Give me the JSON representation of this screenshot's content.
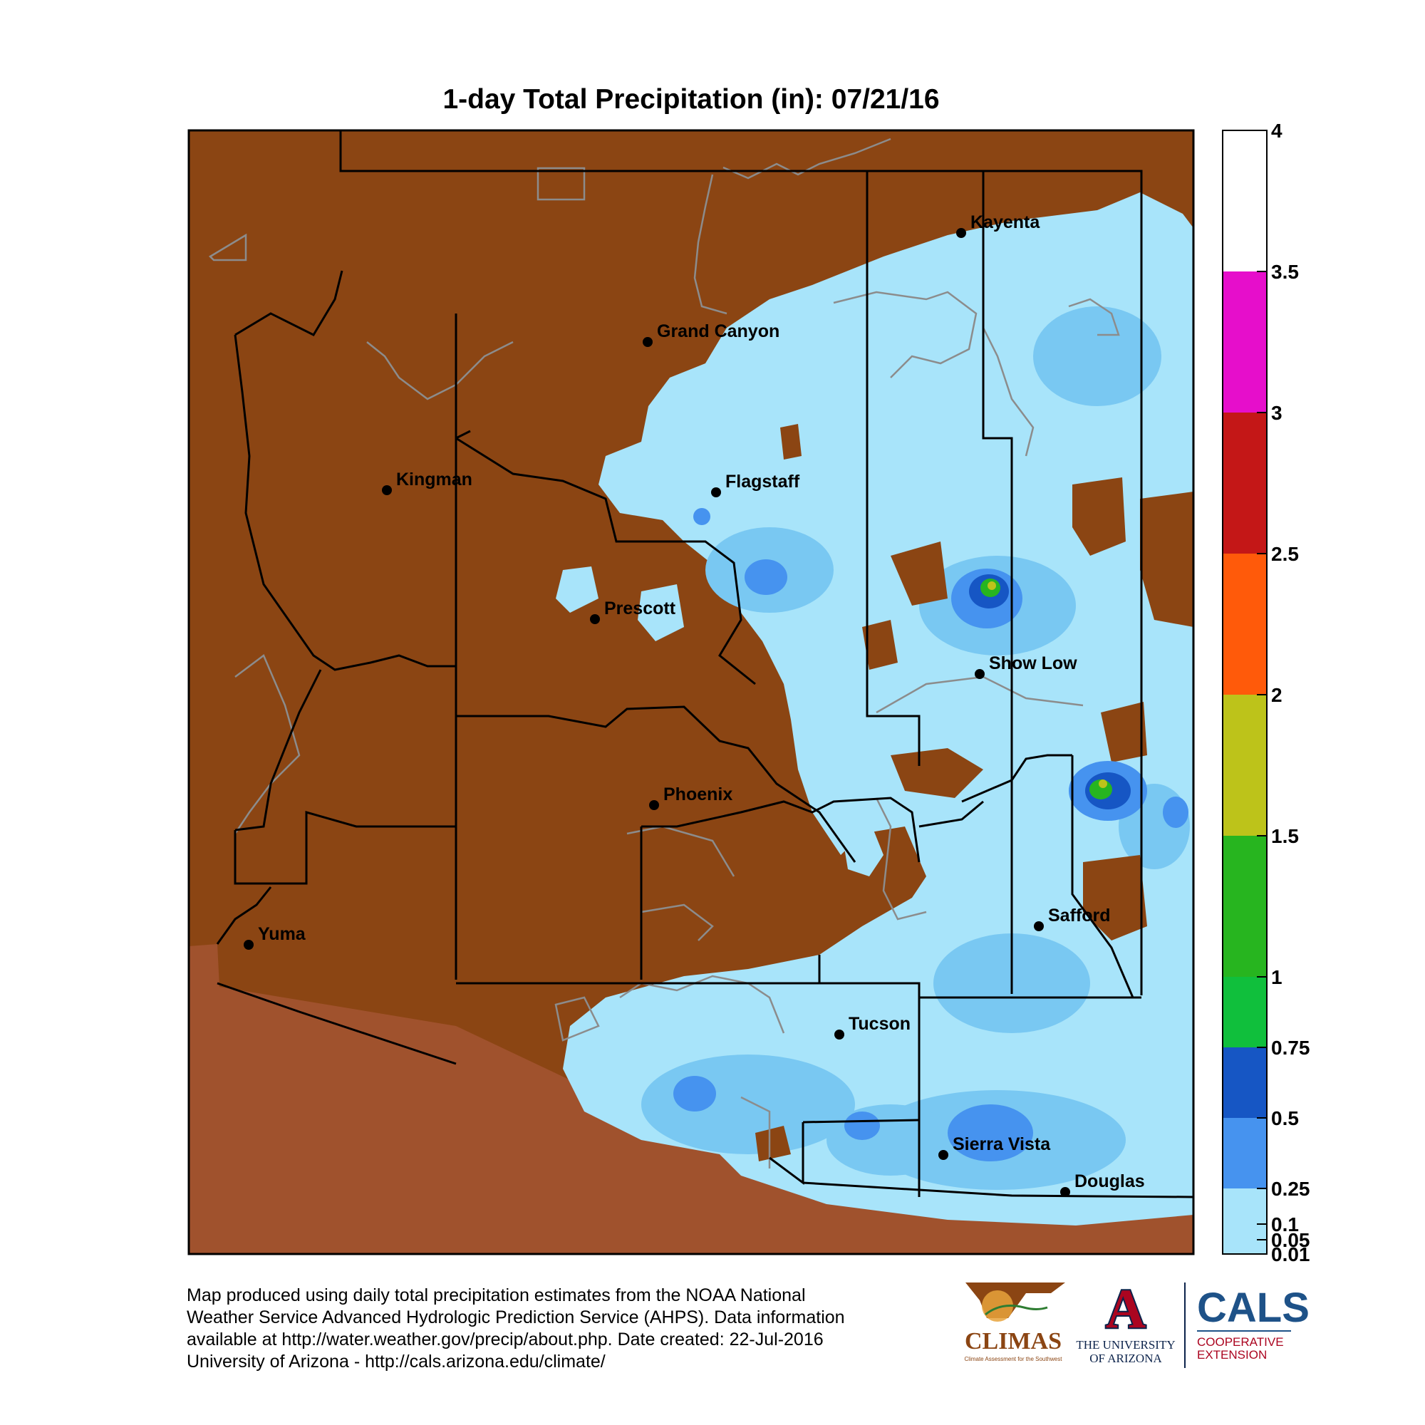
{
  "title": "1-day Total Precipitation (in): 07/21/16",
  "cities": [
    {
      "name": "Kayenta"
    },
    {
      "name": "Grand Canyon"
    },
    {
      "name": "Kingman"
    },
    {
      "name": "Flagstaff"
    },
    {
      "name": "Prescott"
    },
    {
      "name": "Show Low"
    },
    {
      "name": "Phoenix"
    },
    {
      "name": "Safford"
    },
    {
      "name": "Yuma"
    },
    {
      "name": "Tucson"
    },
    {
      "name": "Sierra Vista"
    },
    {
      "name": "Douglas"
    }
  ],
  "legend": {
    "ticks": [
      "4",
      "3.5",
      "3",
      "2.5",
      "2",
      "1.5",
      "1",
      "0.75",
      "0.5",
      "0.25",
      "0.1",
      "0.05",
      "0.01"
    ],
    "bins": [
      {
        "from": "3.5",
        "to": "4",
        "color": "#ffffff"
      },
      {
        "from": "3",
        "to": "3.5",
        "color": "#e60ecb"
      },
      {
        "from": "2.5",
        "to": "3",
        "color": "#c41717"
      },
      {
        "from": "2",
        "to": "2.5",
        "color": "#ff5a0a"
      },
      {
        "from": "1.5",
        "to": "2",
        "color": "#bdc31a"
      },
      {
        "from": "1",
        "to": "1.5",
        "color": "#27b51f"
      },
      {
        "from": "0.75",
        "to": "1",
        "color": "#10bf3c"
      },
      {
        "from": "0.5",
        "to": "0.75",
        "color": "#1656c4"
      },
      {
        "from": "0.25",
        "to": "0.5",
        "color": "#4693ef"
      },
      {
        "from": "0.01",
        "to": "0.25",
        "color": "#a8e4fa"
      }
    ]
  },
  "colors": {
    "no_precip": "#8b4513",
    "outside": "#a0522d",
    "light": "#a8e4fa",
    "medium": "#79c8f2"
  },
  "footer": {
    "lines": [
      "Map produced using daily total precipitation estimates from the NOAA National",
      "Weather Service Advanced Hydrologic Prediction Service (AHPS). Data information",
      "available at http://water.weather.gov/precip/about.php. Date created: 22-Jul-2016",
      "University of Arizona - http://cals.arizona.edu/climate/"
    ]
  },
  "logos": {
    "climas": "CLIMAS",
    "climas_sub": "Climate Assessment for the Southwest",
    "ua_letter": "A",
    "ua_line1": "THE UNIVERSITY",
    "ua_line2": "OF ARIZONA",
    "cals": "CALS",
    "cals_line1": "COOPERATIVE",
    "cals_line2": "EXTENSION"
  }
}
